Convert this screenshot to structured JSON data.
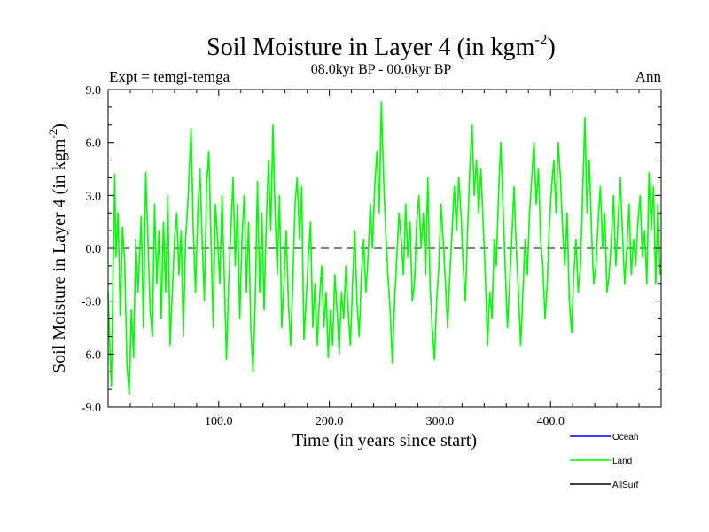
{
  "chart_data": {
    "type": "line",
    "title": "Soil Moisture in Layer 4 (in kgm",
    "title_sup": "-2",
    "title_close": ")",
    "subtitle_left": "Expt = temgi-temga",
    "subtitle_center": "08.0kyr BP - 00.0kyr BP",
    "subtitle_right": "Ann",
    "xlabel": "Time (in years since start)",
    "ylabel": "Soil Moisture in Layer 4 (in kgm",
    "ylabel_sup": "-2",
    "ylabel_close": ")",
    "xlim": [
      0,
      500
    ],
    "ylim": [
      -9,
      9
    ],
    "x_ticks": [
      100,
      200,
      300,
      400
    ],
    "x_tick_labels": [
      "100.0",
      "200.0",
      "300.0",
      "400.0"
    ],
    "y_ticks": [
      -9,
      -6,
      -3,
      0,
      3,
      6,
      9
    ],
    "y_tick_labels": [
      "-9.0",
      "-6.0",
      "-3.0",
      "0.0",
      "3.0",
      "6.0",
      "9.0"
    ],
    "zero_line": true,
    "legend": [
      {
        "name": "Ocean",
        "color": "#0000ff"
      },
      {
        "name": "Land",
        "color": "#00ff00"
      },
      {
        "name": "AllSurf",
        "color": "#000000"
      }
    ],
    "series": [
      {
        "name": "Land",
        "color": "#00ff00",
        "anchors": [
          [
            0,
            -2.5
          ],
          [
            2,
            -6.5
          ],
          [
            3,
            -7.8
          ],
          [
            5,
            0.5
          ],
          [
            6,
            4.2
          ],
          [
            7,
            -0.5
          ],
          [
            9,
            2.0
          ],
          [
            11,
            -3.8
          ],
          [
            13,
            1.2
          ],
          [
            15,
            -0.8
          ],
          [
            17,
            -6.5
          ],
          [
            19,
            -8.3
          ],
          [
            21,
            -3.5
          ],
          [
            23,
            -6.2
          ],
          [
            25,
            0.5
          ],
          [
            27,
            -2.5
          ],
          [
            30,
            1.8
          ],
          [
            32,
            -4.5
          ],
          [
            34,
            4.3
          ],
          [
            36,
            0.5
          ],
          [
            38,
            -3.5
          ],
          [
            40,
            -5.0
          ],
          [
            42,
            2.5
          ],
          [
            44,
            -2.0
          ],
          [
            46,
            1.0
          ],
          [
            48,
            -4.0
          ],
          [
            50,
            1.5
          ],
          [
            52,
            -2.5
          ],
          [
            54,
            3.0
          ],
          [
            56,
            -5.5
          ],
          [
            58,
            -2.5
          ],
          [
            60,
            0.5
          ],
          [
            62,
            2.0
          ],
          [
            64,
            -1.5
          ],
          [
            66,
            1.0
          ],
          [
            68,
            -5.0
          ],
          [
            70,
            0.5
          ],
          [
            72,
            2.5
          ],
          [
            75,
            6.8
          ],
          [
            77,
            1.0
          ],
          [
            79,
            -2.5
          ],
          [
            81,
            2.0
          ],
          [
            83,
            4.5
          ],
          [
            85,
            0.5
          ],
          [
            87,
            -3.0
          ],
          [
            89,
            3.5
          ],
          [
            91,
            5.5
          ],
          [
            93,
            0.5
          ],
          [
            95,
            -4.5
          ],
          [
            97,
            2.5
          ],
          [
            99,
            0.5
          ],
          [
            101,
            -2.0
          ],
          [
            103,
            3.0
          ],
          [
            105,
            -1.5
          ],
          [
            107,
            -6.3
          ],
          [
            109,
            -2.0
          ],
          [
            111,
            1.0
          ],
          [
            113,
            4.0
          ],
          [
            115,
            -1.0
          ],
          [
            117,
            2.5
          ],
          [
            119,
            -4.0
          ],
          [
            121,
            0.5
          ],
          [
            123,
            3.0
          ],
          [
            125,
            -2.5
          ],
          [
            127,
            1.5
          ],
          [
            129,
            -4.5
          ],
          [
            131,
            -7.0
          ],
          [
            133,
            -3.0
          ],
          [
            135,
            3.8
          ],
          [
            137,
            -2.5
          ],
          [
            139,
            2.0
          ],
          [
            141,
            -3.5
          ],
          [
            143,
            1.5
          ],
          [
            145,
            5.0
          ],
          [
            147,
            1.0
          ],
          [
            149,
            7.0
          ],
          [
            151,
            2.0
          ],
          [
            153,
            -1.5
          ],
          [
            155,
            3.0
          ],
          [
            157,
            -4.5
          ],
          [
            159,
            -2.0
          ],
          [
            161,
            1.0
          ],
          [
            163,
            -3.0
          ],
          [
            165,
            -5.5
          ],
          [
            167,
            -2.0
          ],
          [
            169,
            2.5
          ],
          [
            171,
            4.0
          ],
          [
            173,
            0.5
          ],
          [
            175,
            3.5
          ],
          [
            177,
            -5.2
          ],
          [
            179,
            -3.0
          ],
          [
            181,
            -0.5
          ],
          [
            183,
            1.5
          ],
          [
            185,
            -4.5
          ],
          [
            187,
            -2.0
          ],
          [
            189,
            -5.5
          ],
          [
            191,
            -3.0
          ],
          [
            193,
            -1.0
          ],
          [
            195,
            -4.5
          ],
          [
            197,
            -2.5
          ],
          [
            199,
            -6.2
          ],
          [
            201,
            -3.5
          ],
          [
            203,
            -5.5
          ],
          [
            205,
            -1.5
          ],
          [
            207,
            -3.5
          ],
          [
            209,
            -6.0
          ],
          [
            211,
            -2.5
          ],
          [
            213,
            -4.0
          ],
          [
            215,
            -1.0
          ],
          [
            217,
            -3.5
          ],
          [
            219,
            -5.5
          ],
          [
            221,
            -2.0
          ],
          [
            223,
            1.0
          ],
          [
            225,
            -3.0
          ],
          [
            227,
            -5.0
          ],
          [
            229,
            -1.5
          ],
          [
            231,
            0.5
          ],
          [
            233,
            -2.5
          ],
          [
            235,
            -0.5
          ],
          [
            237,
            2.5
          ],
          [
            239,
            0.0
          ],
          [
            241,
            3.5
          ],
          [
            243,
            5.5
          ],
          [
            245,
            2.0
          ],
          [
            247,
            8.3
          ],
          [
            249,
            4.0
          ],
          [
            251,
            1.0
          ],
          [
            253,
            -1.5
          ],
          [
            255,
            -3.5
          ],
          [
            257,
            -6.5
          ],
          [
            259,
            -3.0
          ],
          [
            261,
            -0.5
          ],
          [
            263,
            2.0
          ],
          [
            265,
            0.5
          ],
          [
            267,
            -1.5
          ],
          [
            269,
            2.5
          ],
          [
            271,
            -0.5
          ],
          [
            273,
            1.5
          ],
          [
            275,
            -3.0
          ],
          [
            277,
            -2.0
          ],
          [
            279,
            1.5
          ],
          [
            281,
            3.0
          ],
          [
            283,
            0.0
          ],
          [
            285,
            2.0
          ],
          [
            287,
            -1.5
          ],
          [
            289,
            4.0
          ],
          [
            291,
            -2.0
          ],
          [
            293,
            -4.5
          ],
          [
            295,
            -6.3
          ],
          [
            297,
            -3.0
          ],
          [
            299,
            -1.0
          ],
          [
            301,
            2.5
          ],
          [
            303,
            0.5
          ],
          [
            305,
            -2.0
          ],
          [
            307,
            -4.5
          ],
          [
            309,
            -1.5
          ],
          [
            311,
            1.0
          ],
          [
            313,
            3.5
          ],
          [
            315,
            1.0
          ],
          [
            317,
            4.0
          ],
          [
            319,
            2.0
          ],
          [
            321,
            -1.0
          ],
          [
            323,
            -3.0
          ],
          [
            325,
            1.0
          ],
          [
            327,
            4.5
          ],
          [
            329,
            7.0
          ],
          [
            331,
            3.0
          ],
          [
            333,
            5.0
          ],
          [
            335,
            2.0
          ],
          [
            337,
            4.5
          ],
          [
            339,
            1.5
          ],
          [
            341,
            -1.5
          ],
          [
            343,
            -5.5
          ],
          [
            345,
            -2.5
          ],
          [
            347,
            -4.0
          ],
          [
            349,
            0.5
          ],
          [
            351,
            -1.0
          ],
          [
            353,
            3.0
          ],
          [
            355,
            6.0
          ],
          [
            357,
            2.5
          ],
          [
            359,
            -1.0
          ],
          [
            361,
            -4.5
          ],
          [
            363,
            -2.0
          ],
          [
            365,
            0.5
          ],
          [
            367,
            3.5
          ],
          [
            369,
            0.0
          ],
          [
            371,
            -2.5
          ],
          [
            373,
            -5.5
          ],
          [
            375,
            -2.5
          ],
          [
            377,
            0.5
          ],
          [
            379,
            -1.5
          ],
          [
            381,
            2.0
          ],
          [
            383,
            4.0
          ],
          [
            385,
            6.0
          ],
          [
            387,
            2.5
          ],
          [
            389,
            4.5
          ],
          [
            391,
            0.5
          ],
          [
            393,
            -1.0
          ],
          [
            395,
            -4.0
          ],
          [
            397,
            -2.0
          ],
          [
            399,
            1.5
          ],
          [
            401,
            3.5
          ],
          [
            403,
            5.0
          ],
          [
            405,
            2.0
          ],
          [
            407,
            6.0
          ],
          [
            409,
            4.0
          ],
          [
            411,
            1.0
          ],
          [
            413,
            -1.0
          ],
          [
            415,
            2.0
          ],
          [
            417,
            -3.0
          ],
          [
            419,
            -4.8
          ],
          [
            421,
            -1.5
          ],
          [
            423,
            0.5
          ],
          [
            425,
            -2.5
          ],
          [
            427,
            -1.0
          ],
          [
            429,
            3.0
          ],
          [
            431,
            7.4
          ],
          [
            433,
            2.0
          ],
          [
            435,
            5.0
          ],
          [
            437,
            1.0
          ],
          [
            439,
            -2.0
          ],
          [
            441,
            -1.0
          ],
          [
            443,
            1.5
          ],
          [
            445,
            3.5
          ],
          [
            447,
            0.0
          ],
          [
            449,
            2.0
          ],
          [
            451,
            -2.5
          ],
          [
            453,
            -1.5
          ],
          [
            455,
            0.5
          ],
          [
            457,
            3.0
          ],
          [
            459,
            -1.0
          ],
          [
            461,
            1.5
          ],
          [
            463,
            4.0
          ],
          [
            465,
            1.0
          ],
          [
            467,
            -2.0
          ],
          [
            469,
            0.0
          ],
          [
            471,
            2.5
          ],
          [
            473,
            -1.5
          ],
          [
            475,
            0.5
          ],
          [
            477,
            -1.0
          ],
          [
            479,
            1.5
          ],
          [
            481,
            3.0
          ],
          [
            483,
            -0.5
          ],
          [
            485,
            1.0
          ],
          [
            487,
            -2.0
          ],
          [
            489,
            4.3
          ],
          [
            491,
            1.0
          ],
          [
            493,
            3.5
          ],
          [
            495,
            -2.0
          ],
          [
            497,
            2.5
          ],
          [
            499,
            -1.5
          ]
        ]
      }
    ]
  }
}
